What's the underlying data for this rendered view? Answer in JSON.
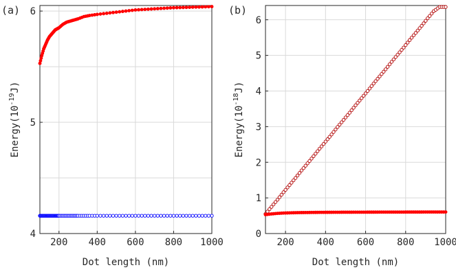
{
  "chart_data": [
    {
      "panel_label": "(a)",
      "type": "line",
      "title": "",
      "xlabel": "Dot length (nm)",
      "ylabel": "Energy(10",
      "ylabel_exp": "-19",
      "ylabel_unit": "J)",
      "xlim": [
        100,
        1000
      ],
      "ylim": [
        4,
        6.05
      ],
      "xticks": [
        200,
        400,
        600,
        800,
        1000
      ],
      "yticks": [
        4,
        5,
        6
      ],
      "grid": true,
      "x": [
        100,
        110,
        120,
        130,
        140,
        150,
        160,
        170,
        180,
        190,
        200,
        220,
        240,
        260,
        280,
        300,
        330,
        360,
        400,
        450,
        500,
        550,
        600,
        650,
        700,
        750,
        800,
        850,
        900,
        950,
        1000
      ],
      "series": [
        {
          "marker": "filled-circle",
          "color": "#ff0000",
          "values": [
            5.53,
            5.6,
            5.66,
            5.7,
            5.74,
            5.77,
            5.79,
            5.81,
            5.83,
            5.84,
            5.85,
            5.88,
            5.9,
            5.91,
            5.92,
            5.93,
            5.95,
            5.96,
            5.97,
            5.98,
            5.99,
            6.0,
            6.01,
            6.015,
            6.02,
            6.025,
            6.03,
            6.032,
            6.035,
            6.037,
            6.04
          ]
        },
        {
          "marker": "open-circle",
          "color": "#0000ff",
          "values": [
            4.16,
            4.16,
            4.16,
            4.16,
            4.16,
            4.16,
            4.16,
            4.16,
            4.16,
            4.16,
            4.16,
            4.16,
            4.16,
            4.16,
            4.16,
            4.16,
            4.16,
            4.16,
            4.16,
            4.16,
            4.16,
            4.16,
            4.16,
            4.16,
            4.16,
            4.16,
            4.16,
            4.16,
            4.16,
            4.16,
            4.16
          ]
        }
      ]
    },
    {
      "panel_label": "(b)",
      "type": "line",
      "title": "",
      "xlabel": "Dot length (nm)",
      "ylabel": "Energy(10",
      "ylabel_exp": "-18",
      "ylabel_unit": "J)",
      "xlim": [
        100,
        1000
      ],
      "ylim": [
        0,
        6.4
      ],
      "xticks": [
        200,
        400,
        600,
        800,
        1000
      ],
      "yticks": [
        0,
        1,
        2,
        3,
        4,
        5,
        6
      ],
      "grid": true,
      "x": [
        100,
        130,
        160,
        190,
        220,
        250,
        280,
        310,
        340,
        370,
        400,
        430,
        460,
        490,
        520,
        550,
        580,
        610,
        640,
        670,
        700,
        730,
        760,
        790,
        820,
        850,
        880,
        910,
        940,
        970,
        1000
      ],
      "series": [
        {
          "marker": "open-circle",
          "color": "#b00000",
          "values": [
            0.55,
            0.75,
            0.95,
            1.16,
            1.36,
            1.56,
            1.77,
            1.97,
            2.17,
            2.38,
            2.58,
            2.78,
            2.99,
            3.19,
            3.39,
            3.6,
            3.8,
            4.0,
            4.21,
            4.41,
            4.61,
            4.82,
            5.02,
            5.22,
            5.43,
            5.63,
            5.83,
            6.04,
            6.24,
            6.36,
            6.36
          ]
        },
        {
          "marker": "filled-circle",
          "color": "#ff0000",
          "values": [
            0.53,
            0.55,
            0.565,
            0.575,
            0.58,
            0.585,
            0.588,
            0.59,
            0.592,
            0.594,
            0.595,
            0.596,
            0.597,
            0.598,
            0.598,
            0.599,
            0.599,
            0.6,
            0.6,
            0.601,
            0.601,
            0.602,
            0.602,
            0.602,
            0.603,
            0.603,
            0.603,
            0.604,
            0.604,
            0.604,
            0.604
          ]
        }
      ]
    }
  ]
}
